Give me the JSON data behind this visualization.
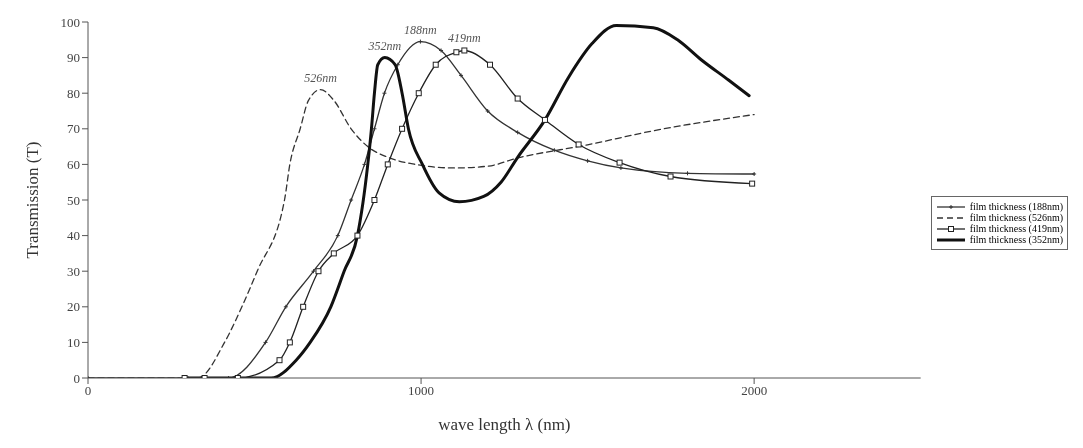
{
  "chart_data": {
    "type": "line",
    "xlabel": "wave length λ  (nm)",
    "ylabel": "Transmission (T)",
    "xlim": [
      0,
      2500
    ],
    "xticks": [
      0,
      1000,
      2000
    ],
    "ylim": [
      0,
      100
    ],
    "yticks": [
      0,
      10,
      20,
      30,
      40,
      50,
      60,
      70,
      80,
      90,
      100
    ],
    "legend": "right",
    "annotations": [
      {
        "text": "526nm",
        "x": 698,
        "y": 81
      },
      {
        "text": "352nm",
        "x": 891,
        "y": 90
      },
      {
        "text": "188nm",
        "x": 998,
        "y": 94.5
      },
      {
        "text": "419nm",
        "x": 1130,
        "y": 92
      }
    ],
    "series": [
      {
        "name": "film thickness (188nm)",
        "color": "#333333",
        "marker": "cross",
        "line_style": "solid",
        "x": [
          0,
          300,
          422,
          533,
          594,
          677,
          750,
          790,
          830,
          860,
          890,
          930,
          998,
          1060,
          1120,
          1200,
          1290,
          1400,
          1500,
          1600,
          1800,
          2000
        ],
        "values": [
          0,
          0,
          0,
          10,
          20,
          30,
          40,
          50,
          60,
          70,
          80,
          88,
          94.5,
          92,
          85,
          75,
          69,
          64,
          61,
          59,
          57.5,
          57.3
        ]
      },
      {
        "name": "film thickness (526nm)",
        "color": "#333333",
        "marker": "none",
        "line_style": "dashed",
        "x": [
          0,
          200,
          330,
          410,
          462,
          508,
          590,
          606,
          637,
          662,
          698,
          738,
          790,
          840,
          900,
          983,
          1100,
          1200,
          1290,
          1500,
          1700,
          2000
        ],
        "values": [
          0,
          0,
          0,
          10,
          20,
          30,
          50,
          60,
          70,
          78,
          81,
          78,
          70,
          65,
          62,
          60,
          59,
          59.5,
          61.8,
          65.5,
          69.5,
          74
        ]
      },
      {
        "name": "film thickness (419nm)",
        "color": "#222222",
        "marker": "square",
        "line_style": "solid",
        "x": [
          290,
          350,
          450,
          575,
          606,
          646,
          692,
          738,
          809,
          860,
          900,
          943,
          993,
          1044,
          1106,
          1130,
          1207,
          1290,
          1372,
          1473,
          1596,
          1749,
          1994
        ],
        "values": [
          0,
          0,
          0,
          5,
          10,
          20,
          30,
          35,
          40,
          50,
          60,
          70,
          80,
          88,
          91.5,
          92,
          88,
          78.5,
          72.5,
          65.6,
          60.5,
          56.6,
          54.6
        ]
      },
      {
        "name": "film thickness (352nm)",
        "color": "#111111",
        "marker": "none",
        "line_style": "solid",
        "x": [
          300,
          450,
          550,
          625,
          667,
          729,
          769,
          809,
          840,
          851,
          860,
          870,
          891,
          922,
          943,
          962,
          1004,
          1054,
          1115,
          1188,
          1240,
          1290,
          1372,
          1443,
          1514,
          1586,
          1697,
          1770,
          1841,
          1923,
          1985
        ],
        "values": [
          0,
          0,
          0,
          5,
          10,
          20,
          30,
          40,
          60,
          70,
          80,
          88,
          90,
          88,
          80,
          70,
          60,
          52,
          49.5,
          51,
          55,
          62,
          72.5,
          84.5,
          94,
          99,
          98.4,
          95,
          89.4,
          83.7,
          79.3
        ]
      }
    ]
  }
}
